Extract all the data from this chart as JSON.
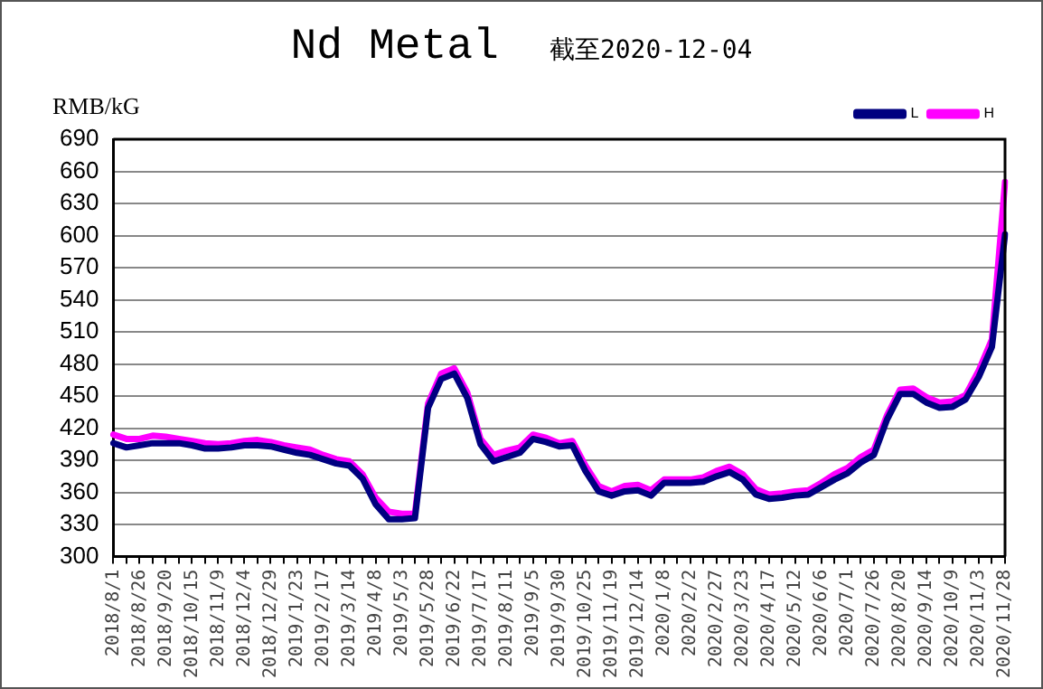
{
  "chart_data": {
    "type": "line",
    "title": "Nd Metal",
    "subtitle": "截至2020-12-04",
    "ylabel": "RMB/kG",
    "categories": [
      "2018/8/1",
      null,
      "2018/8/26",
      null,
      "2018/9/20",
      null,
      "2018/10/15",
      null,
      "2018/11/9",
      null,
      "2018/12/4",
      null,
      "2018/12/29",
      null,
      "2019/1/23",
      null,
      "2019/2/17",
      null,
      "2019/3/14",
      null,
      "2019/4/8",
      null,
      "2019/5/3",
      null,
      "2019/5/28",
      null,
      "2019/6/22",
      null,
      "2019/7/17",
      null,
      "2019/8/11",
      null,
      "2019/9/5",
      null,
      "2019/9/30",
      null,
      "2019/10/25",
      null,
      "2019/11/19",
      null,
      "2019/12/14",
      null,
      "2020/1/8",
      null,
      "2020/2/2",
      null,
      "2020/2/27",
      null,
      "2020/3/23",
      null,
      "2020/4/17",
      null,
      "2020/5/12",
      null,
      "2020/6/6",
      null,
      "2020/7/1",
      null,
      "2020/7/26",
      null,
      "2020/8/20",
      null,
      "2020/9/14",
      null,
      "2020/10/9",
      null,
      "2020/11/3",
      null,
      "2020/11/28"
    ],
    "series": [
      {
        "name": "L",
        "color": "#000080",
        "values": [
          406,
          402,
          404,
          406,
          406,
          406,
          404,
          401,
          401,
          402,
          404,
          404,
          403,
          400,
          397,
          395,
          391,
          387,
          385,
          373,
          349,
          335,
          335,
          336,
          439,
          466,
          471,
          448,
          405,
          389,
          393,
          397,
          410,
          407,
          403,
          404,
          380,
          361,
          357,
          361,
          362,
          357,
          369,
          369,
          369,
          370,
          375,
          379,
          372,
          358,
          354,
          355,
          357,
          358,
          365,
          372,
          378,
          388,
          395,
          428,
          452,
          452,
          444,
          439,
          440,
          447,
          468,
          496,
          601
        ]
      },
      {
        "name": "H",
        "color": "#ff00ff",
        "values": [
          414,
          410,
          410,
          413,
          412,
          410,
          408,
          406,
          405,
          406,
          408,
          409,
          407,
          404,
          402,
          400,
          395,
          391,
          389,
          377,
          355,
          342,
          340,
          340,
          443,
          471,
          476,
          453,
          410,
          395,
          399,
          402,
          414,
          411,
          406,
          408,
          385,
          366,
          361,
          366,
          367,
          362,
          372,
          372,
          372,
          374,
          380,
          384,
          377,
          363,
          358,
          359,
          361,
          362,
          369,
          377,
          383,
          393,
          400,
          432,
          456,
          457,
          449,
          444,
          445,
          451,
          474,
          503,
          650
        ]
      }
    ],
    "ylim": [
      300,
      690
    ],
    "yticks": [
      300,
      330,
      360,
      390,
      420,
      450,
      480,
      510,
      540,
      570,
      600,
      630,
      660,
      690
    ],
    "grid": "y",
    "legend": "top right",
    "marker": "none",
    "line_style": "solid"
  }
}
